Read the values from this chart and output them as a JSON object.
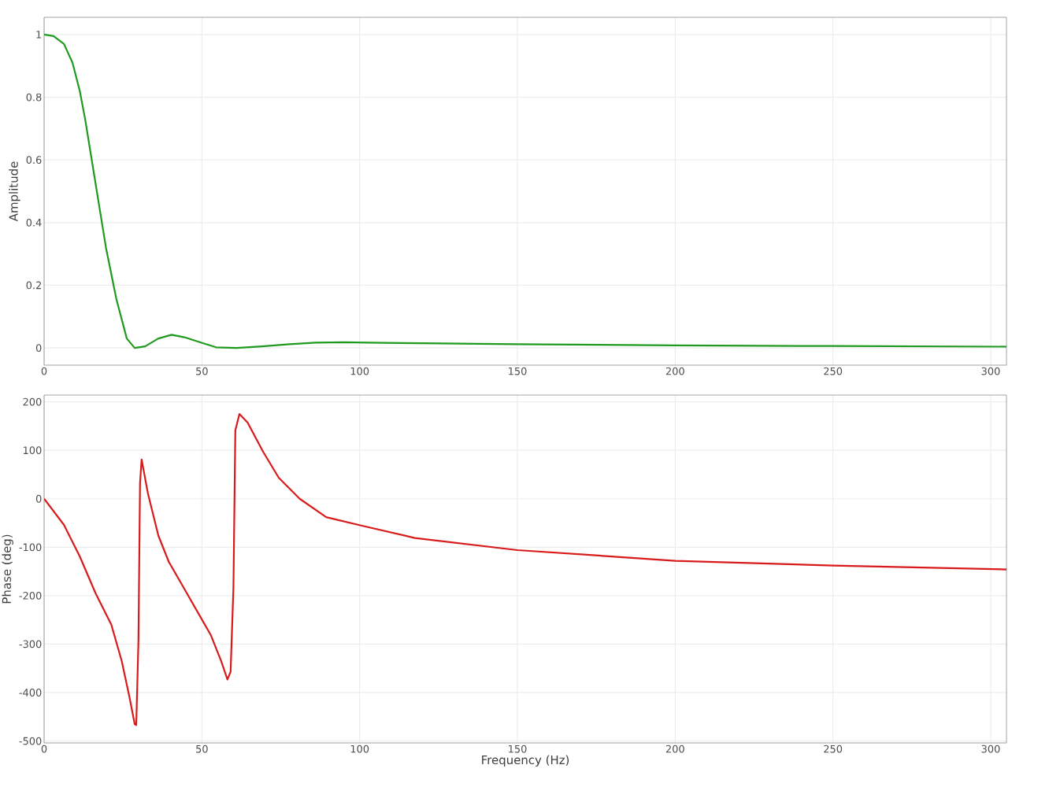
{
  "chart_data": [
    {
      "type": "line",
      "ylabel": "Amplitude",
      "grid": true,
      "xlim": [
        0,
        305
      ],
      "ylim": [
        -0.055,
        1.055
      ],
      "xticks": [
        0,
        50,
        100,
        150,
        200,
        250,
        300
      ],
      "yticks": [
        0,
        0.2,
        0.4,
        0.6,
        0.8,
        1
      ],
      "x": [
        0,
        3,
        6.3,
        9,
        11.3,
        13,
        16.3,
        19.6,
        22.9,
        26.2,
        28.7,
        32,
        36.2,
        40.4,
        44.5,
        49.5,
        54.5,
        61,
        69,
        77.7,
        86,
        95,
        102.7,
        120,
        150,
        200,
        250,
        305
      ],
      "series": [
        {
          "color": "#1f9a1f",
          "values": [
            1,
            0.995,
            0.97,
            0.91,
            0.82,
            0.73,
            0.525,
            0.32,
            0.156,
            0.03,
            0.0,
            0.005,
            0.03,
            0.042,
            0.034,
            0.018,
            0.002,
            0.0,
            0.005,
            0.012,
            0.017,
            0.018,
            0.017,
            0.015,
            0.012,
            0.008,
            0.006,
            0.004
          ]
        }
      ]
    },
    {
      "type": "line",
      "xlabel": "Frequency (Hz)",
      "ylabel": "Phase (deg)",
      "grid": true,
      "xlim": [
        0,
        305
      ],
      "ylim": [
        -504,
        214
      ],
      "xticks": [
        0,
        50,
        100,
        150,
        200,
        250,
        300
      ],
      "yticks": [
        -500,
        -400,
        -300,
        -200,
        -100,
        0,
        100,
        200
      ],
      "x": [
        0,
        6.3,
        11.3,
        16.3,
        21.3,
        24.6,
        27.1,
        28.7,
        29.2,
        29.9,
        30.4,
        30.9,
        32.9,
        36.2,
        39.5,
        46.2,
        52.8,
        56.1,
        58.1,
        59.1,
        60,
        60.6,
        61.9,
        64.5,
        69.4,
        74.4,
        81,
        89.4,
        101,
        117.5,
        150,
        200,
        250,
        305
      ],
      "series": [
        {
          "color": "#d91a1a",
          "values": [
            0,
            -54,
            -119,
            -195,
            -260,
            -335,
            -411,
            -465,
            -467,
            -292,
            32,
            81,
            11,
            -76,
            -130,
            -206,
            -281,
            -335,
            -373,
            -357,
            -184,
            141,
            175,
            157,
            97,
            43,
            0,
            -38,
            -56,
            -81,
            -106,
            -128,
            -138,
            -146
          ]
        }
      ]
    }
  ]
}
